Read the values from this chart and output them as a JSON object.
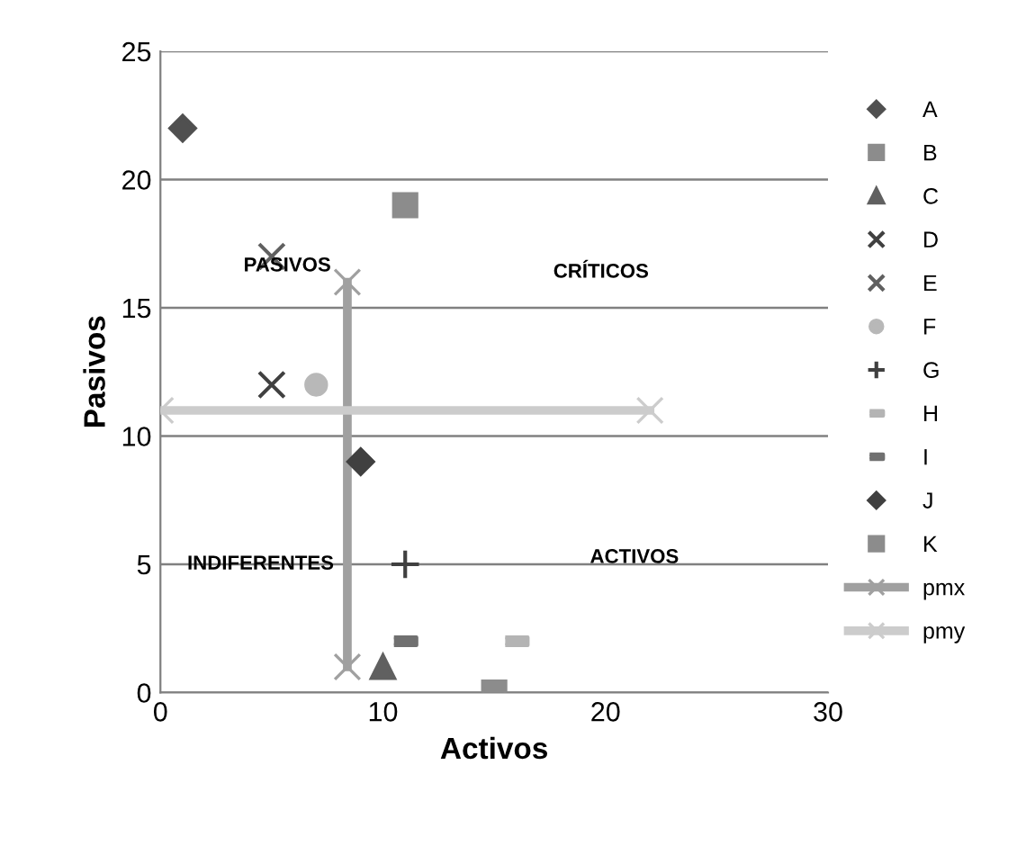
{
  "chart_data": {
    "type": "scatter",
    "xlabel": "Activos",
    "ylabel": "Pasivos",
    "xlim": [
      0,
      30
    ],
    "xticks": [
      0,
      10,
      20,
      30
    ],
    "ylim": [
      0,
      25
    ],
    "yticks": [
      0,
      5,
      10,
      15,
      20,
      25
    ],
    "grid": "y",
    "legend": "right",
    "series": [
      {
        "name": "A",
        "color": "#505050",
        "marker": "diamond",
        "x": [
          1
        ],
        "values": [
          22
        ]
      },
      {
        "name": "B",
        "color": "#8c8c8c",
        "marker": "square",
        "x": [
          11
        ],
        "values": [
          19
        ]
      },
      {
        "name": "C",
        "color": "#606060",
        "marker": "triangle",
        "x": [
          10
        ],
        "values": [
          1
        ]
      },
      {
        "name": "D",
        "color": "#404040",
        "marker": "cross",
        "x": [
          5
        ],
        "values": [
          12
        ]
      },
      {
        "name": "E",
        "color": "#606060",
        "marker": "cross",
        "x": [
          5
        ],
        "values": [
          17
        ]
      },
      {
        "name": "F",
        "color": "#b8b8b8",
        "marker": "circle",
        "x": [
          7
        ],
        "values": [
          12
        ]
      },
      {
        "name": "G",
        "color": "#404040",
        "marker": "plus",
        "x": [
          11
        ],
        "values": [
          5
        ]
      },
      {
        "name": "H",
        "color": "#b4b4b4",
        "x": [
          16
        ],
        "values": [
          2
        ]
      },
      {
        "name": "I",
        "color": "#707070",
        "x": [
          11
        ],
        "values": [
          2
        ]
      },
      {
        "name": "J",
        "color": "#404040",
        "marker": "diamond",
        "x": [
          9
        ],
        "values": [
          9
        ]
      },
      {
        "name": "K",
        "color": "#8c8c8c",
        "marker": "square",
        "x": [
          15
        ],
        "values": [
          0
        ]
      },
      {
        "name": "pmx",
        "type": "line",
        "color": "#a0a0a0",
        "marker": "cross",
        "x": [
          8.4,
          8.4
        ],
        "values": [
          16,
          1
        ]
      },
      {
        "name": "pmy",
        "type": "line",
        "color": "#cccccc",
        "marker": "cross",
        "x": [
          0,
          22
        ],
        "values": [
          11,
          11
        ]
      }
    ],
    "annotations": [
      "PASIVOS",
      "CRÍTICOS",
      "INDIFERENTES",
      "ACTIVOS"
    ]
  }
}
